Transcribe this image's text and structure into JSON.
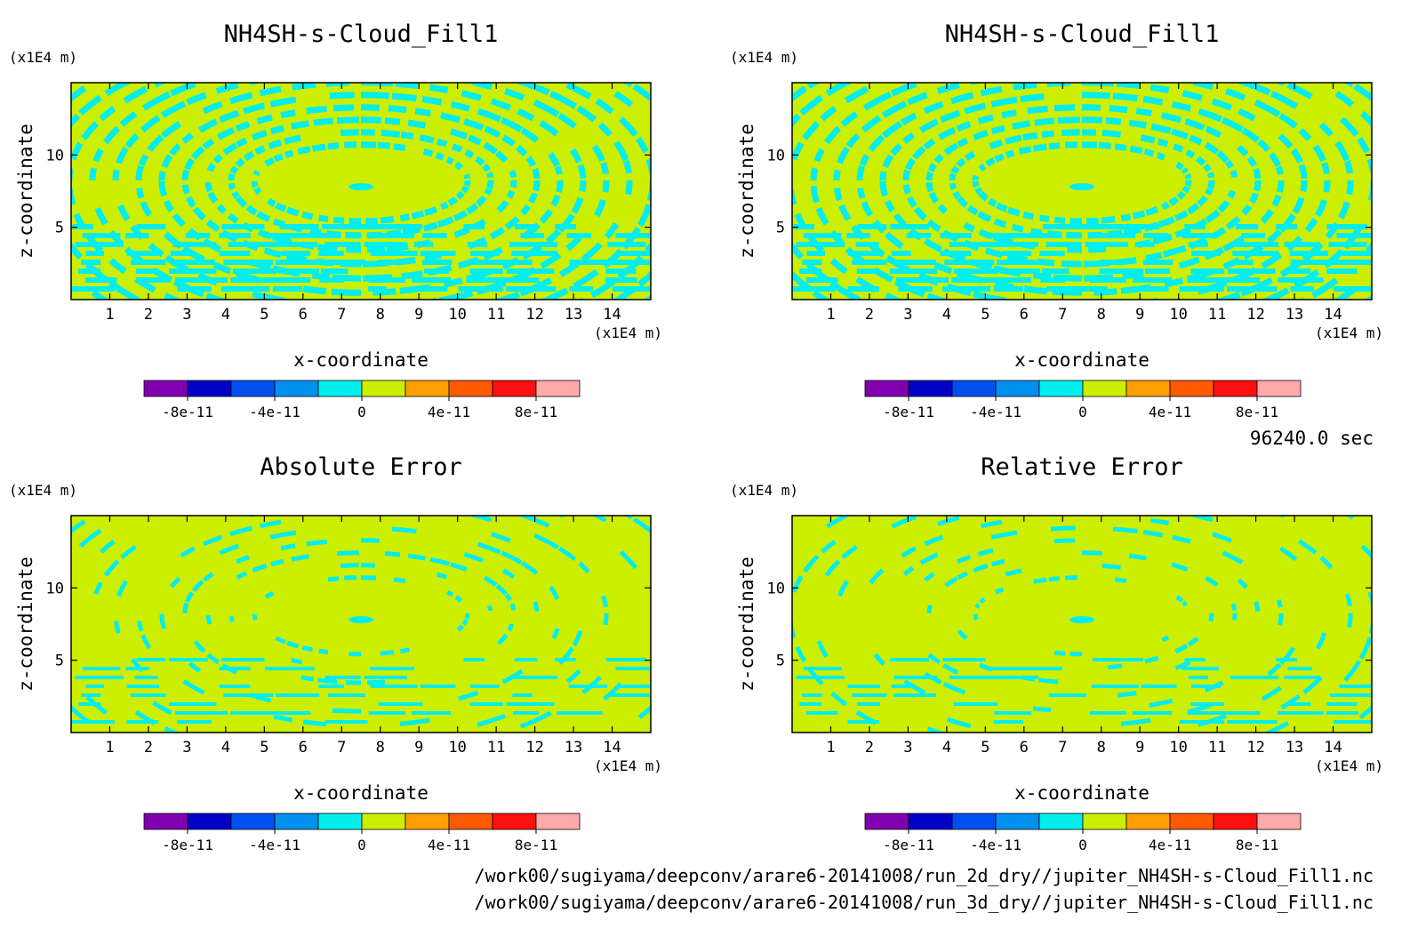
{
  "colors": {
    "field_background": "#ccee00",
    "field_stripe": "#00eeee",
    "frame": "#000000",
    "colorbar": [
      "#8000b0",
      "#0000c8",
      "#0050f0",
      "#0090ee",
      "#00eeee",
      "#ccee00",
      "#ffa000",
      "#ff5a00",
      "#ff1010",
      "#ffaaaa"
    ]
  },
  "chart_data": [
    {
      "type": "heatmap",
      "title": "NH4SH-s-Cloud_Fill1",
      "xlabel": "x-coordinate",
      "ylabel": "z-coordinate",
      "x_unit": "(x1E4 m)",
      "y_unit": "(x1E4 m)",
      "xlim": [
        0,
        15
      ],
      "ylim": [
        0,
        15
      ],
      "x_ticks": [
        "1",
        "2",
        "3",
        "4",
        "5",
        "6",
        "7",
        "8",
        "9",
        "10",
        "11",
        "12",
        "13",
        "14"
      ],
      "y_ticks": [
        "5",
        "10"
      ],
      "colorbar_ticks": [
        "-8e-11",
        "-4e-11",
        "0",
        "4e-11",
        "8e-11"
      ],
      "colorbar_range": [
        -1e-10,
        1e-10
      ],
      "pattern_density": 1.0
    },
    {
      "type": "heatmap",
      "title": "NH4SH-s-Cloud_Fill1",
      "xlabel": "x-coordinate",
      "ylabel": "z-coordinate",
      "x_unit": "(x1E4 m)",
      "y_unit": "(x1E4 m)",
      "xlim": [
        0,
        15
      ],
      "ylim": [
        0,
        15
      ],
      "x_ticks": [
        "1",
        "2",
        "3",
        "4",
        "5",
        "6",
        "7",
        "8",
        "9",
        "10",
        "11",
        "12",
        "13",
        "14"
      ],
      "y_ticks": [
        "5",
        "10"
      ],
      "colorbar_ticks": [
        "-8e-11",
        "-4e-11",
        "0",
        "4e-11",
        "8e-11"
      ],
      "colorbar_range": [
        -1e-10,
        1e-10
      ],
      "pattern_density": 1.0
    },
    {
      "type": "heatmap",
      "title": "Absolute Error",
      "xlabel": "x-coordinate",
      "ylabel": "z-coordinate",
      "x_unit": "(x1E4 m)",
      "y_unit": "(x1E4 m)",
      "xlim": [
        0,
        15
      ],
      "ylim": [
        0,
        15
      ],
      "x_ticks": [
        "1",
        "2",
        "3",
        "4",
        "5",
        "6",
        "7",
        "8",
        "9",
        "10",
        "11",
        "12",
        "13",
        "14"
      ],
      "y_ticks": [
        "5",
        "10"
      ],
      "colorbar_ticks": [
        "-8e-11",
        "-4e-11",
        "0",
        "4e-11",
        "8e-11"
      ],
      "colorbar_range": [
        -1e-10,
        1e-10
      ],
      "pattern_density": 0.55
    },
    {
      "type": "heatmap",
      "title": "Relative Error",
      "xlabel": "x-coordinate",
      "ylabel": "z-coordinate",
      "x_unit": "(x1E4 m)",
      "y_unit": "(x1E4 m)",
      "xlim": [
        0,
        15
      ],
      "ylim": [
        0,
        15
      ],
      "x_ticks": [
        "1",
        "2",
        "3",
        "4",
        "5",
        "6",
        "7",
        "8",
        "9",
        "10",
        "11",
        "12",
        "13",
        "14"
      ],
      "y_ticks": [
        "5",
        "10"
      ],
      "colorbar_ticks": [
        "-8e-11",
        "-4e-11",
        "0",
        "4e-11",
        "8e-11"
      ],
      "colorbar_range": [
        -1e-10,
        1e-10
      ],
      "pattern_density": 0.5
    }
  ],
  "time_label": "96240.0 sec",
  "file_paths": [
    "/work00/sugiyama/deepconv/arare6-20141008/run_2d_dry//jupiter_NH4SH-s-Cloud_Fill1.nc",
    "/work00/sugiyama/deepconv/arare6-20141008/run_3d_dry//jupiter_NH4SH-s-Cloud_Fill1.nc"
  ]
}
